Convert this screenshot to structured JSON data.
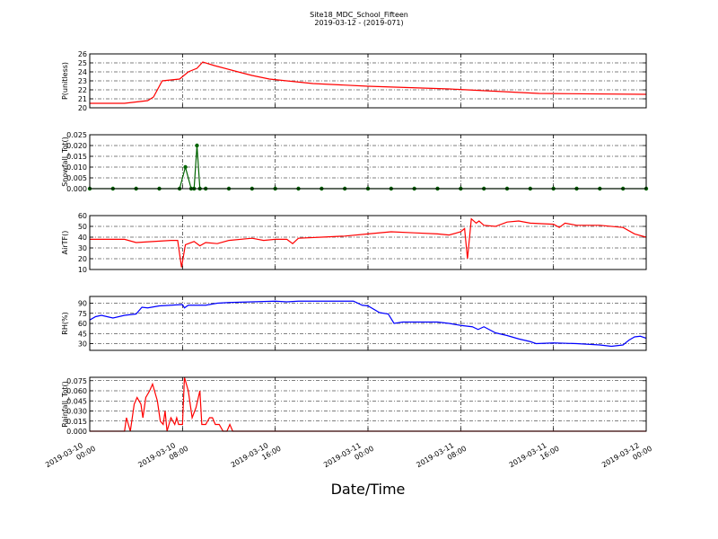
{
  "chart_data": [
    {
      "type": "line",
      "title": "Site18_MDC_School_Fifteen",
      "subtitle": "2019-03-12 - (2019-071)",
      "ylabel": "P(unitless)",
      "color": "#ff0000",
      "grid": true,
      "xlim": [
        "2019-03-10 00:00",
        "2019-03-12 00:00"
      ],
      "xticks": [
        "2019-03-10 00:00",
        "2019-03-10 08:00",
        "2019-03-10 16:00",
        "2019-03-11 00:00",
        "2019-03-11 08:00",
        "2019-03-11 16:00",
        "2019-03-12 00:00"
      ],
      "ylim": [
        20,
        26
      ],
      "yticks": [
        20,
        21,
        22,
        23,
        24,
        25,
        26
      ],
      "x": [
        "2019-03-10 00:00",
        "2019-03-10 03:00",
        "2019-03-10 05:00",
        "2019-03-10 05:30",
        "2019-03-10 06:15",
        "2019-03-10 07:45",
        "2019-03-10 08:30",
        "2019-03-10 09:15",
        "2019-03-10 09:45",
        "2019-03-10 10:45",
        "2019-03-10 12:30",
        "2019-03-10 14:00",
        "2019-03-10 15:30",
        "2019-03-10 19:15",
        "2019-03-11 00:00",
        "2019-03-11 07:00",
        "2019-03-11 14:45",
        "2019-03-12 00:00"
      ],
      "values": [
        20.5,
        20.5,
        20.8,
        21.2,
        23.0,
        23.2,
        24.0,
        24.4,
        25.1,
        24.7,
        24.1,
        23.6,
        23.2,
        22.7,
        22.4,
        22.1,
        21.6,
        21.5
      ]
    },
    {
      "type": "line",
      "ylabel": "Snowfall_Tot()",
      "color": "#006400",
      "marker": "o",
      "grid": true,
      "xlim": [
        "2019-03-10 00:00",
        "2019-03-12 00:00"
      ],
      "xticks": [
        "2019-03-10 00:00",
        "2019-03-10 08:00",
        "2019-03-10 16:00",
        "2019-03-11 00:00",
        "2019-03-11 08:00",
        "2019-03-11 16:00",
        "2019-03-12 00:00"
      ],
      "ylim": [
        0,
        0.025
      ],
      "yticks": [
        {
          "value": 0,
          "label": "0.000"
        },
        {
          "value": 0.005,
          "label": "0.005"
        },
        {
          "value": 0.01,
          "label": "0.010"
        },
        {
          "value": 0.015,
          "label": "0.015"
        },
        {
          "value": 0.02,
          "label": "0.020"
        },
        {
          "value": 0.025,
          "label": "0.025"
        }
      ],
      "x": [
        "2019-03-10 00:00",
        "2019-03-10 02:00",
        "2019-03-10 04:00",
        "2019-03-10 06:00",
        "2019-03-10 07:45",
        "2019-03-10 08:15",
        "2019-03-10 08:45",
        "2019-03-10 09:00",
        "2019-03-10 09:15",
        "2019-03-10 09:30",
        "2019-03-10 10:00",
        "2019-03-10 12:00",
        "2019-03-10 14:00",
        "2019-03-10 16:00",
        "2019-03-10 18:00",
        "2019-03-10 20:00",
        "2019-03-10 22:00",
        "2019-03-11 00:00",
        "2019-03-11 02:00",
        "2019-03-11 04:00",
        "2019-03-11 06:00",
        "2019-03-11 08:00",
        "2019-03-11 10:00",
        "2019-03-11 12:00",
        "2019-03-11 14:00",
        "2019-03-11 16:00",
        "2019-03-11 18:00",
        "2019-03-11 20:00",
        "2019-03-11 22:00",
        "2019-03-12 00:00"
      ],
      "values": [
        0,
        0,
        0,
        0,
        0,
        0.01,
        0,
        0,
        0.02,
        0,
        0,
        0,
        0,
        0,
        0,
        0,
        0,
        0,
        0,
        0,
        0,
        0,
        0,
        0,
        0,
        0,
        0,
        0,
        0,
        0
      ]
    },
    {
      "type": "line",
      "ylabel": "AirTF()",
      "color": "#ff0000",
      "grid": true,
      "xlim": [
        "2019-03-10 00:00",
        "2019-03-12 00:00"
      ],
      "xticks": [
        "2019-03-10 00:00",
        "2019-03-10 08:00",
        "2019-03-10 16:00",
        "2019-03-11 00:00",
        "2019-03-11 08:00",
        "2019-03-11 16:00",
        "2019-03-12 00:00"
      ],
      "ylim": [
        10,
        60
      ],
      "yticks": [
        10,
        20,
        30,
        40,
        50,
        60
      ],
      "x": [
        "2019-03-10 00:00",
        "2019-03-10 03:00",
        "2019-03-10 04:00",
        "2019-03-10 07:00",
        "2019-03-10 07:35",
        "2019-03-10 07:55",
        "2019-03-10 08:15",
        "2019-03-10 09:00",
        "2019-03-10 09:30",
        "2019-03-10 10:00",
        "2019-03-10 11:00",
        "2019-03-10 12:00",
        "2019-03-10 14:00",
        "2019-03-10 15:00",
        "2019-03-10 16:00",
        "2019-03-10 17:00",
        "2019-03-10 17:30",
        "2019-03-10 18:00",
        "2019-03-10 20:00",
        "2019-03-10 22:00",
        "2019-03-11 00:00",
        "2019-03-11 02:00",
        "2019-03-11 04:00",
        "2019-03-11 06:00",
        "2019-03-11 07:00",
        "2019-03-11 08:00",
        "2019-03-11 08:20",
        "2019-03-11 08:35",
        "2019-03-11 08:55",
        "2019-03-11 09:20",
        "2019-03-11 09:35",
        "2019-03-11 10:00",
        "2019-03-11 11:00",
        "2019-03-11 12:00",
        "2019-03-11 13:00",
        "2019-03-11 14:00",
        "2019-03-11 16:00",
        "2019-03-11 16:30",
        "2019-03-11 17:00",
        "2019-03-11 18:00",
        "2019-03-11 20:00",
        "2019-03-11 22:00",
        "2019-03-11 23:00",
        "2019-03-12 00:00"
      ],
      "values": [
        38,
        38,
        35,
        37,
        37,
        12,
        33,
        36,
        32,
        35,
        34,
        37,
        39,
        37,
        38,
        38,
        34,
        39,
        40,
        41,
        43,
        45,
        44,
        43,
        42,
        45,
        48,
        20,
        57,
        53,
        55,
        51,
        50,
        54,
        55,
        53,
        52,
        49,
        53,
        51,
        51,
        49,
        43,
        40
      ]
    },
    {
      "type": "line",
      "ylabel": "RH(%)",
      "color": "#0000ff",
      "grid": true,
      "xlim": [
        "2019-03-10 00:00",
        "2019-03-12 00:00"
      ],
      "xticks": [
        "2019-03-10 00:00",
        "2019-03-10 08:00",
        "2019-03-10 16:00",
        "2019-03-11 00:00",
        "2019-03-11 08:00",
        "2019-03-11 16:00",
        "2019-03-12 00:00"
      ],
      "ylim": [
        20,
        100
      ],
      "yticks": [
        30,
        45,
        60,
        75,
        90
      ],
      "x": [
        "2019-03-10 00:00",
        "2019-03-10 00:30",
        "2019-03-10 01:00",
        "2019-03-10 02:00",
        "2019-03-10 03:00",
        "2019-03-10 04:00",
        "2019-03-10 04:30",
        "2019-03-10 05:00",
        "2019-03-10 06:00",
        "2019-03-10 07:00",
        "2019-03-10 08:00",
        "2019-03-10 08:10",
        "2019-03-10 08:30",
        "2019-03-10 10:00",
        "2019-03-10 11:00",
        "2019-03-10 12:00",
        "2019-03-10 14:00",
        "2019-03-10 16:00",
        "2019-03-10 17:00",
        "2019-03-10 18:00",
        "2019-03-10 22:45",
        "2019-03-10 23:30",
        "2019-03-11 00:00",
        "2019-03-11 01:00",
        "2019-03-11 01:45",
        "2019-03-11 02:15",
        "2019-03-11 03:00",
        "2019-03-11 06:00",
        "2019-03-11 07:00",
        "2019-03-11 08:00",
        "2019-03-11 09:00",
        "2019-03-11 09:30",
        "2019-03-11 10:00",
        "2019-03-11 11:00",
        "2019-03-11 12:00",
        "2019-03-11 13:00",
        "2019-03-11 14:00",
        "2019-03-11 14:30",
        "2019-03-11 16:00",
        "2019-03-11 18:00",
        "2019-03-11 20:00",
        "2019-03-11 21:00",
        "2019-03-11 22:00",
        "2019-03-11 22:30",
        "2019-03-11 23:00",
        "2019-03-11 23:30",
        "2019-03-12 00:00"
      ],
      "values": [
        65,
        70,
        72,
        68,
        72,
        74,
        84,
        83,
        86,
        87,
        88,
        83,
        87,
        87,
        90,
        91,
        92,
        93,
        92,
        93,
        93,
        87,
        86,
        76,
        74,
        60,
        62,
        62,
        60,
        57,
        55,
        51,
        55,
        46,
        42,
        37,
        33,
        30,
        31,
        30,
        28,
        26,
        28,
        35,
        40,
        41,
        38
      ]
    },
    {
      "type": "line",
      "ylabel": "Rainfall_Tot()",
      "xlabel": "Date/Time",
      "xticklabels": true,
      "color": "#ff0000",
      "grid": true,
      "xlim": [
        "2019-03-10 00:00",
        "2019-03-12 00:00"
      ],
      "xticks": [
        "2019-03-10 00:00",
        "2019-03-10 08:00",
        "2019-03-10 16:00",
        "2019-03-11 00:00",
        "2019-03-11 08:00",
        "2019-03-11 16:00",
        "2019-03-12 00:00"
      ],
      "ylim": [
        0,
        0.08
      ],
      "yticks": [
        {
          "value": 0,
          "label": "0.000"
        },
        {
          "value": 0.015,
          "label": "0.015"
        },
        {
          "value": 0.03,
          "label": "0.030"
        },
        {
          "value": 0.045,
          "label": "0.045"
        },
        {
          "value": 0.06,
          "label": "0.060"
        },
        {
          "value": 0.075,
          "label": "0.075"
        }
      ],
      "x": [
        "2019-03-10 00:00",
        "2019-03-10 03:00",
        "2019-03-10 03:10",
        "2019-03-10 03:30",
        "2019-03-10 03:50",
        "2019-03-10 04:05",
        "2019-03-10 04:25",
        "2019-03-10 04:35",
        "2019-03-10 04:50",
        "2019-03-10 05:10",
        "2019-03-10 05:25",
        "2019-03-10 05:50",
        "2019-03-10 06:05",
        "2019-03-10 06:20",
        "2019-03-10 06:30",
        "2019-03-10 06:40",
        "2019-03-10 07:00",
        "2019-03-10 07:20",
        "2019-03-10 07:30",
        "2019-03-10 07:40",
        "2019-03-10 08:00",
        "2019-03-10 08:10",
        "2019-03-10 08:30",
        "2019-03-10 08:50",
        "2019-03-10 09:10",
        "2019-03-10 09:30",
        "2019-03-10 09:40",
        "2019-03-10 10:00",
        "2019-03-10 10:20",
        "2019-03-10 10:35",
        "2019-03-10 10:50",
        "2019-03-10 11:10",
        "2019-03-10 11:30",
        "2019-03-10 11:50",
        "2019-03-10 12:05",
        "2019-03-10 12:20",
        "2019-03-10 13:00",
        "2019-03-12 00:00"
      ],
      "values": [
        0,
        0,
        0.02,
        0,
        0.04,
        0.05,
        0.04,
        0.02,
        0.05,
        0.06,
        0.07,
        0.045,
        0.015,
        0.01,
        0.03,
        0,
        0.02,
        0.01,
        0.02,
        0.01,
        0.01,
        0.08,
        0.06,
        0.02,
        0.035,
        0.06,
        0.01,
        0.01,
        0.02,
        0.02,
        0.01,
        0.01,
        0,
        0,
        0.01,
        0,
        0,
        0
      ]
    }
  ]
}
